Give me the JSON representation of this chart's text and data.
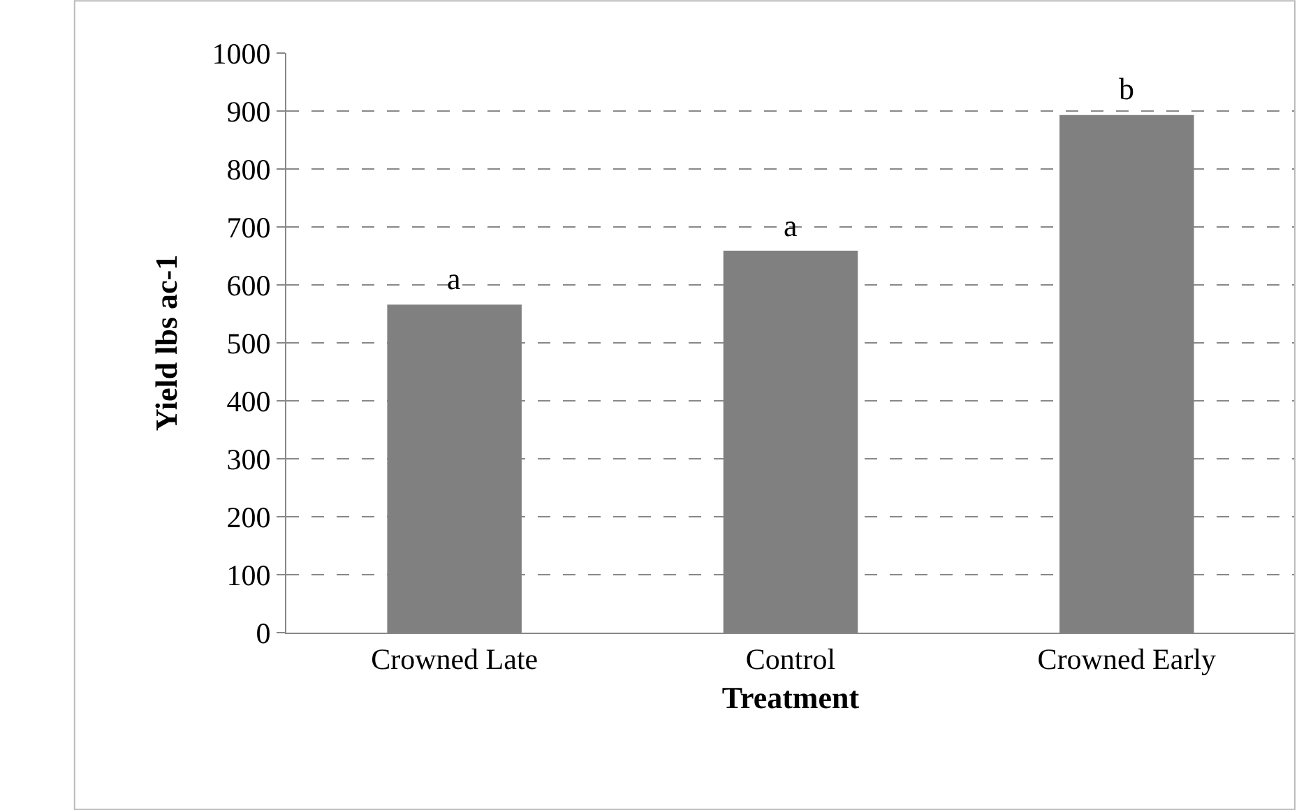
{
  "chart_data": {
    "type": "bar",
    "xlabel": "Treatment",
    "ylabel": "Yield lbs ac-1",
    "categories": [
      "Crowned Late",
      "Control",
      "Crowned Early"
    ],
    "values": [
      566,
      659,
      893
    ],
    "color": "#808080",
    "ylim": [
      0,
      1000
    ],
    "yticks": [
      0,
      100,
      200,
      300,
      400,
      500,
      600,
      700,
      800,
      900,
      1000
    ],
    "grid": "y",
    "line_style": "dashed",
    "legend": false,
    "annotations": [
      {
        "text": "a",
        "x": "Crowned Late",
        "y": 566
      },
      {
        "text": "a",
        "x": "Control",
        "y": 659
      },
      {
        "text": "b",
        "x": "Crowned Early",
        "y": 893
      }
    ]
  }
}
